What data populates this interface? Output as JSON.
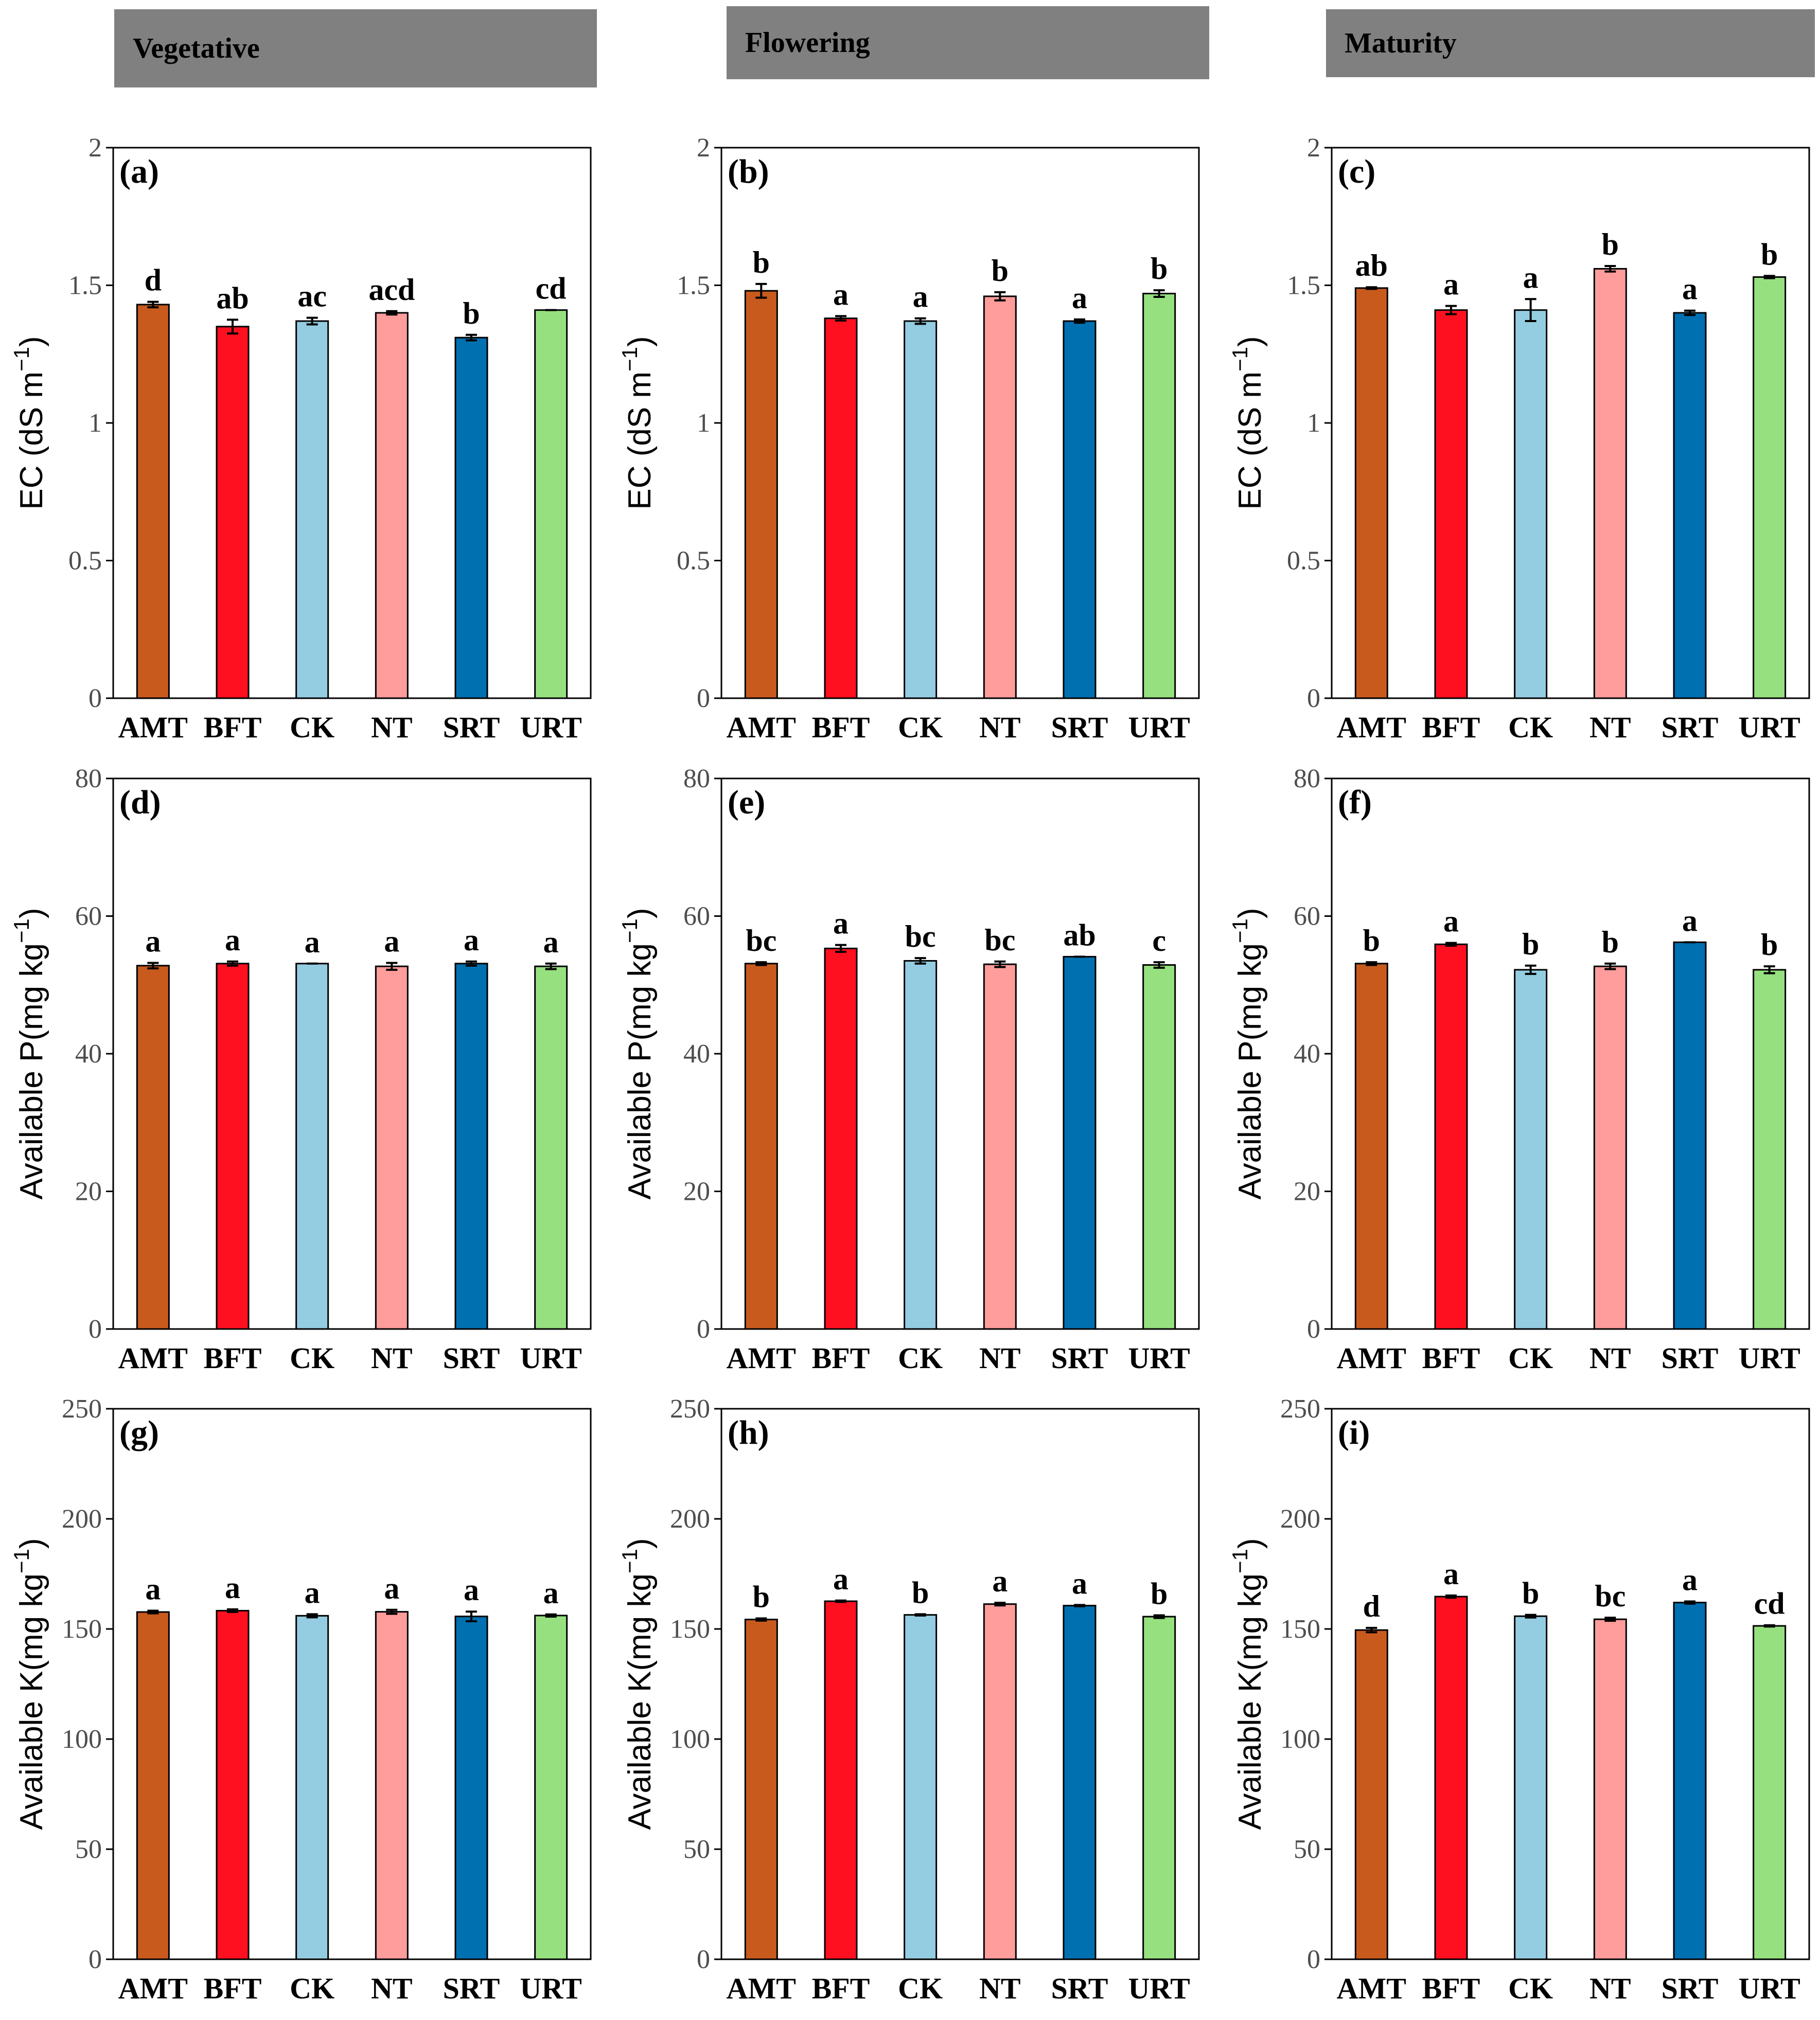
{
  "stages": [
    "Vegetative",
    "Flowering",
    "Maturity"
  ],
  "treatments": [
    "AMT",
    "BFT",
    "CK",
    "NT",
    "SRT",
    "URT"
  ],
  "colors": {
    "AMT": "#c85a1e",
    "BFT": "#ff1020",
    "CK": "#94cde2",
    "NT": "#ff9c9c",
    "SRT": "#0070b0",
    "URT": "#96e080",
    "stage_header": "#808080"
  },
  "variables": [
    {
      "key": "ec",
      "ylabel_main": "EC (dS m",
      "ylabel_sup": "−1",
      "ylabel_end": ")",
      "ylim": [
        0,
        2
      ],
      "yticks": [
        0,
        0.5,
        1,
        1.5,
        2
      ],
      "ytick_labels": [
        "0",
        "0.5",
        "1",
        "1.5",
        "2"
      ]
    },
    {
      "key": "p",
      "ylabel_main": "Available P(mg kg",
      "ylabel_sup": "−1",
      "ylabel_end": ")",
      "ylim": [
        0,
        80
      ],
      "yticks": [
        0,
        20,
        40,
        60,
        80
      ],
      "ytick_labels": [
        "0",
        "20",
        "40",
        "60",
        "80"
      ]
    },
    {
      "key": "k",
      "ylabel_main": "Available K(mg kg",
      "ylabel_sup": "−1",
      "ylabel_end": ")",
      "ylim": [
        0,
        250
      ],
      "yticks": [
        0,
        50,
        100,
        150,
        200,
        250
      ],
      "ytick_labels": [
        "0",
        "50",
        "100",
        "150",
        "200",
        "250"
      ]
    }
  ],
  "chart_data": [
    {
      "panel": "(a)",
      "type": "bar",
      "stage": "Vegetative",
      "variable": "EC",
      "ylabel": "EC (dS m−1)",
      "ylim": [
        0,
        2
      ],
      "categories": [
        "AMT",
        "BFT",
        "CK",
        "NT",
        "SRT",
        "URT"
      ],
      "values": [
        1.43,
        1.35,
        1.37,
        1.4,
        1.31,
        1.41
      ],
      "errors": [
        0.01,
        0.025,
        0.012,
        0.006,
        0.01,
        0.0
      ],
      "letters": [
        "d",
        "ab",
        "ac",
        "acd",
        "b",
        "cd"
      ]
    },
    {
      "panel": "(b)",
      "type": "bar",
      "stage": "Flowering",
      "variable": "EC",
      "ylabel": "EC (dS m−1)",
      "ylim": [
        0,
        2
      ],
      "categories": [
        "AMT",
        "BFT",
        "CK",
        "NT",
        "SRT",
        "URT"
      ],
      "values": [
        1.48,
        1.38,
        1.37,
        1.46,
        1.37,
        1.47
      ],
      "errors": [
        0.025,
        0.008,
        0.01,
        0.015,
        0.006,
        0.012
      ],
      "letters": [
        "b",
        "a",
        "a",
        "b",
        "a",
        "b"
      ]
    },
    {
      "panel": "(c)",
      "type": "bar",
      "stage": "Maturity",
      "variable": "EC",
      "ylabel": "EC (dS m−1)",
      "ylim": [
        0,
        2
      ],
      "categories": [
        "AMT",
        "BFT",
        "CK",
        "NT",
        "SRT",
        "URT"
      ],
      "values": [
        1.49,
        1.41,
        1.41,
        1.56,
        1.4,
        1.53
      ],
      "errors": [
        0.003,
        0.015,
        0.04,
        0.01,
        0.008,
        0.004
      ],
      "letters": [
        "ab",
        "a",
        "a",
        "b",
        "a",
        "b"
      ]
    },
    {
      "panel": "(d)",
      "type": "bar",
      "stage": "Vegetative",
      "variable": "Available P",
      "ylabel": "Available P(mg kg−1)",
      "ylim": [
        0,
        80
      ],
      "categories": [
        "AMT",
        "BFT",
        "CK",
        "NT",
        "SRT",
        "URT"
      ],
      "values": [
        52.8,
        53.1,
        53.1,
        52.7,
        53.1,
        52.7
      ],
      "errors": [
        0.4,
        0.3,
        0.0,
        0.5,
        0.3,
        0.4
      ],
      "letters": [
        "a",
        "a",
        "a",
        "a",
        "a",
        "a"
      ]
    },
    {
      "panel": "(e)",
      "type": "bar",
      "stage": "Flowering",
      "variable": "Available P",
      "ylabel": "Available P(mg kg−1)",
      "ylim": [
        0,
        80
      ],
      "categories": [
        "AMT",
        "BFT",
        "CK",
        "NT",
        "SRT",
        "URT"
      ],
      "values": [
        53.1,
        55.3,
        53.5,
        53.0,
        54.1,
        52.9
      ],
      "errors": [
        0.2,
        0.5,
        0.4,
        0.4,
        0.0,
        0.4
      ],
      "letters": [
        "bc",
        "a",
        "bc",
        "bc",
        "ab",
        "c"
      ]
    },
    {
      "panel": "(f)",
      "type": "bar",
      "stage": "Maturity",
      "variable": "Available P",
      "ylabel": "Available P(mg kg−1)",
      "ylim": [
        0,
        80
      ],
      "categories": [
        "AMT",
        "BFT",
        "CK",
        "NT",
        "SRT",
        "URT"
      ],
      "values": [
        53.1,
        55.9,
        52.2,
        52.7,
        56.2,
        52.2
      ],
      "errors": [
        0.2,
        0.2,
        0.6,
        0.4,
        0.0,
        0.5
      ],
      "letters": [
        "b",
        "a",
        "b",
        "b",
        "a",
        "b"
      ]
    },
    {
      "panel": "(g)",
      "type": "bar",
      "stage": "Vegetative",
      "variable": "Available K",
      "ylabel": "Available K(mg kg−1)",
      "ylim": [
        0,
        250
      ],
      "categories": [
        "AMT",
        "BFT",
        "CK",
        "NT",
        "SRT",
        "URT"
      ],
      "values": [
        157.7,
        158.3,
        156.0,
        157.8,
        155.7,
        156.1
      ],
      "errors": [
        0.6,
        0.6,
        0.7,
        0.9,
        2.2,
        0.5
      ],
      "letters": [
        "a",
        "a",
        "a",
        "a",
        "a",
        "a"
      ]
    },
    {
      "panel": "(h)",
      "type": "bar",
      "stage": "Flowering",
      "variable": "Available K",
      "ylabel": "Available K(mg kg−1)",
      "ylim": [
        0,
        250
      ],
      "categories": [
        "AMT",
        "BFT",
        "CK",
        "NT",
        "SRT",
        "URT"
      ],
      "values": [
        154.3,
        162.6,
        156.4,
        161.3,
        160.6,
        155.6
      ],
      "errors": [
        0.5,
        0.3,
        0.3,
        0.6,
        0.3,
        0.6
      ],
      "letters": [
        "b",
        "a",
        "b",
        "a",
        "a",
        "b"
      ]
    },
    {
      "panel": "(i)",
      "type": "bar",
      "stage": "Maturity",
      "variable": "Available K",
      "ylabel": "Available K(mg kg−1)",
      "ylim": [
        0,
        250
      ],
      "categories": [
        "AMT",
        "BFT",
        "CK",
        "NT",
        "SRT",
        "URT"
      ],
      "values": [
        149.5,
        164.7,
        155.8,
        154.4,
        162.0,
        151.4
      ],
      "errors": [
        1.0,
        0.5,
        0.6,
        0.7,
        0.5,
        0.3
      ],
      "letters": [
        "d",
        "a",
        "b",
        "bc",
        "a",
        "cd"
      ]
    }
  ]
}
